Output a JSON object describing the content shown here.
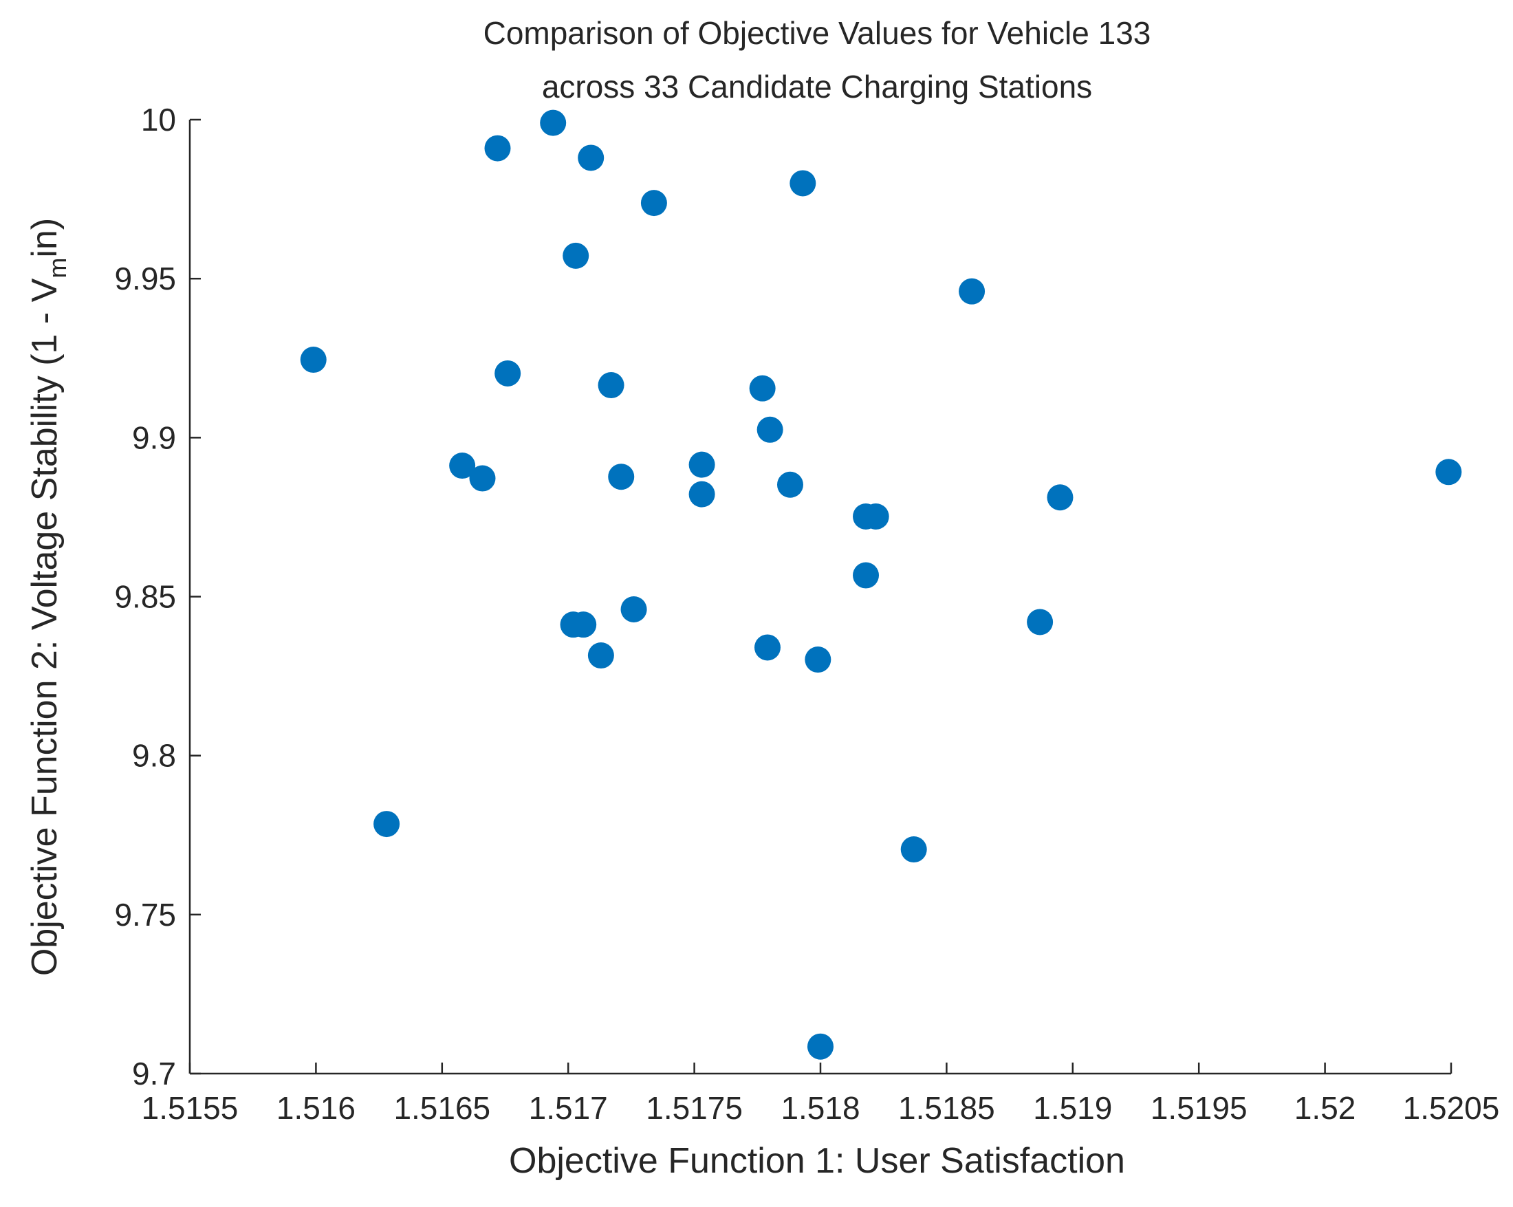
{
  "chart_data": {
    "type": "scatter",
    "title": [
      "Comparison of Objective Values for Vehicle 133",
      "across 33 Candidate Charging Stations"
    ],
    "xlabel": "Objective Function 1: User Satisfaction",
    "ylabel": {
      "prefix": "Objective Function 2: Voltage Stability (1 - V",
      "subscript": "m",
      "suffix": "in)"
    },
    "xlim": [
      1.5155,
      1.5205
    ],
    "ylim": [
      9.7,
      10.0
    ],
    "xticks": [
      1.5155,
      1.516,
      1.5165,
      1.517,
      1.5175,
      1.518,
      1.5185,
      1.519,
      1.5195,
      1.52,
      1.5205
    ],
    "xtick_labels": [
      "1.5155",
      "1.516",
      "1.5165",
      "1.517",
      "1.5175",
      "1.518",
      "1.5185",
      "1.519",
      "1.5195",
      "1.52",
      "1.5205"
    ],
    "yticks": [
      9.7,
      9.75,
      9.8,
      9.85,
      9.9,
      9.95,
      10.0
    ],
    "ytick_labels": [
      "9.7",
      "9.75",
      "9.8",
      "9.85",
      "9.9",
      "9.95",
      "10"
    ],
    "marker_color": "#0072BD",
    "series": [
      {
        "name": "Candidate Charging Stations",
        "points": [
          {
            "x": 1.51599,
            "y": 9.9245
          },
          {
            "x": 1.51628,
            "y": 9.7785
          },
          {
            "x": 1.51658,
            "y": 9.8912
          },
          {
            "x": 1.51666,
            "y": 9.8872
          },
          {
            "x": 1.51672,
            "y": 9.991
          },
          {
            "x": 1.51676,
            "y": 9.9202
          },
          {
            "x": 1.51694,
            "y": 9.999
          },
          {
            "x": 1.51702,
            "y": 9.8412
          },
          {
            "x": 1.51703,
            "y": 9.9572
          },
          {
            "x": 1.51706,
            "y": 9.8412
          },
          {
            "x": 1.51709,
            "y": 9.988
          },
          {
            "x": 1.51713,
            "y": 9.8315
          },
          {
            "x": 1.51717,
            "y": 9.9165
          },
          {
            "x": 1.51721,
            "y": 9.8877
          },
          {
            "x": 1.51726,
            "y": 9.846
          },
          {
            "x": 1.51734,
            "y": 9.9738
          },
          {
            "x": 1.51753,
            "y": 9.8915
          },
          {
            "x": 1.51753,
            "y": 9.8822
          },
          {
            "x": 1.51777,
            "y": 9.9155
          },
          {
            "x": 1.51779,
            "y": 9.834
          },
          {
            "x": 1.5178,
            "y": 9.9025
          },
          {
            "x": 1.51788,
            "y": 9.8852
          },
          {
            "x": 1.51793,
            "y": 9.98
          },
          {
            "x": 1.51799,
            "y": 9.8302
          },
          {
            "x": 1.518,
            "y": 9.7085
          },
          {
            "x": 1.51818,
            "y": 9.8752
          },
          {
            "x": 1.51818,
            "y": 9.8567
          },
          {
            "x": 1.51822,
            "y": 9.8752
          },
          {
            "x": 1.51837,
            "y": 9.7705
          },
          {
            "x": 1.5186,
            "y": 9.946
          },
          {
            "x": 1.51887,
            "y": 9.842
          },
          {
            "x": 1.51895,
            "y": 9.8812
          },
          {
            "x": 1.52049,
            "y": 9.8892
          }
        ]
      }
    ]
  }
}
